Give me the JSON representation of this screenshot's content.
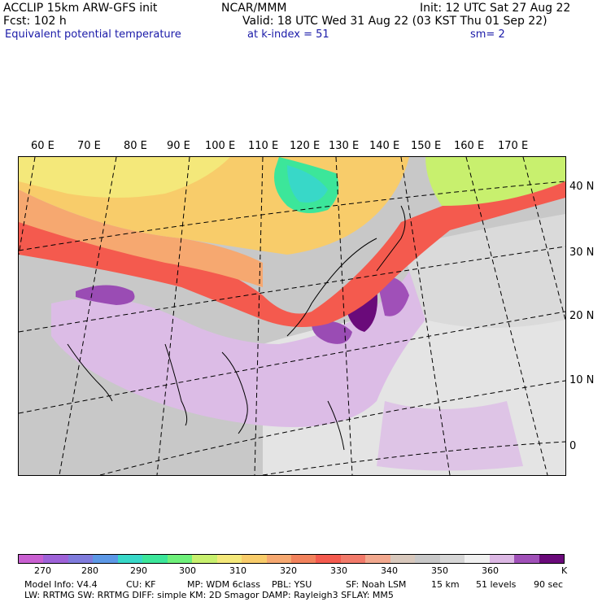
{
  "header": {
    "model": "ACCLIP 15km ARW-GFS init",
    "forecast": "Fcst:  102 h",
    "field": "Equivalent potential temperature",
    "center": "NCAR/MMM",
    "valid": "Valid: 18 UTC Wed 31 Aug 22 (03 KST Thu 01 Sep 22)",
    "init": "Init: 12 UTC Sat 27 Aug 22",
    "level": "at k-index =  51",
    "smooth": "sm= 2"
  },
  "map": {
    "lon_labels": [
      "60 E",
      "70 E",
      "80 E",
      "90 E",
      "100 E",
      "110 E",
      "120 E",
      "130 E",
      "140 E",
      "150 E",
      "160 E",
      "170 E"
    ],
    "lat_labels": [
      "40 N",
      "30 N",
      "20 N",
      "10 N",
      "0"
    ]
  },
  "colorbar": {
    "colors": [
      "#c95fd1",
      "#9e62d8",
      "#7f7bdc",
      "#5c98e6",
      "#38d8c8",
      "#3ce69a",
      "#6ef07a",
      "#c8f06e",
      "#f4e87a",
      "#f8cc6a",
      "#f6a870",
      "#f2825c",
      "#f45a4e",
      "#f27a6a",
      "#f2a88e",
      "#d8c8bc",
      "#c8c8c8",
      "#d6d6d6",
      "#f0f0f0",
      "#dcb8e4",
      "#a050b8",
      "#6a0a7a"
    ],
    "tick_labels": [
      "270",
      "280",
      "290",
      "300",
      "310",
      "320",
      "330",
      "340",
      "350",
      "360",
      "K"
    ]
  },
  "footer": {
    "line1": [
      "Model Info: V4.4",
      "CU: KF",
      "MP: WDM 6class",
      "PBL: YSU",
      "SF: Noah LSM",
      "15 km",
      "51 levels",
      "90 sec"
    ],
    "line2": "LW: RRTMG    SW: RRTMG   DIFF: simple KM: 2D Smagor DAMP: Rayleigh3  SFLAY: MM5"
  }
}
